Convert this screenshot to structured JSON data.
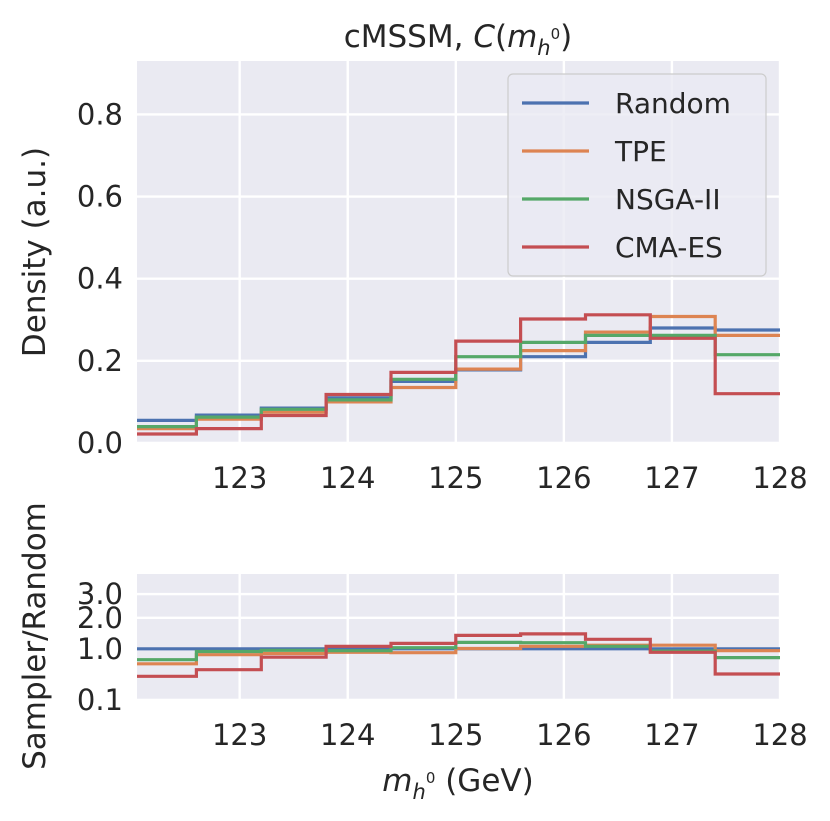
{
  "colors": {
    "background": "#ffffff",
    "axes_face": "#eaeaf2",
    "grid": "#ffffff",
    "text": "#262626",
    "legend_edge": "#cccccc"
  },
  "chart_data": [
    {
      "type": "line",
      "drawstyle": "step-histogram",
      "title": {
        "prefix": "cMSSM, ",
        "func": "C",
        "open": "(",
        "var": "m",
        "sub": "h",
        "sup": "0",
        "close": ")"
      },
      "xlabel": "",
      "ylabel": "Density (a.u.)",
      "xlim": [
        122.05,
        128.0
      ],
      "ylim": [
        0.0,
        0.93
      ],
      "xticks": [
        123,
        124,
        125,
        126,
        127,
        128
      ],
      "yticks": [
        0.0,
        0.2,
        0.4,
        0.6,
        0.8
      ],
      "ytick_labels": [
        "0.0",
        "0.2",
        "0.4",
        "0.6",
        "0.8"
      ],
      "grid": true,
      "legend_position": "top-right",
      "bin_edges": [
        122.05,
        122.6,
        123.2,
        123.8,
        124.4,
        125.0,
        125.6,
        126.2,
        126.8,
        127.4,
        128.0
      ],
      "series": [
        {
          "name": "Random",
          "color": "#4c72b0",
          "values": [
            0.055,
            0.068,
            0.085,
            0.11,
            0.15,
            0.178,
            0.21,
            0.245,
            0.28,
            0.275
          ]
        },
        {
          "name": "TPE",
          "color": "#dd8452",
          "values": [
            0.035,
            0.058,
            0.075,
            0.1,
            0.135,
            0.18,
            0.225,
            0.27,
            0.308,
            0.262
          ]
        },
        {
          "name": "NSGA-II",
          "color": "#55a868",
          "values": [
            0.04,
            0.063,
            0.082,
            0.105,
            0.155,
            0.21,
            0.245,
            0.262,
            0.262,
            0.215
          ]
        },
        {
          "name": "CMA-ES",
          "color": "#c44e52",
          "values": [
            0.022,
            0.035,
            0.067,
            0.118,
            0.172,
            0.248,
            0.302,
            0.312,
            0.255,
            0.12
          ]
        }
      ]
    },
    {
      "type": "line",
      "drawstyle": "step-histogram",
      "title": "",
      "xlabel": {
        "var": "m",
        "sub": "h",
        "sup": "0",
        "units": " (GeV)"
      },
      "ylabel": "Sampler/Random",
      "xlim": [
        122.05,
        128.0
      ],
      "ylim": [
        0.1,
        4.0
      ],
      "yscale": "sqrt",
      "xticks": [
        123,
        124,
        125,
        126,
        127,
        128
      ],
      "yticks": [
        0.1,
        1.0,
        2.0,
        3.0
      ],
      "ytick_labels": [
        "0.1",
        "1.0",
        "2.0",
        "3.0"
      ],
      "grid": true,
      "bin_edges": [
        122.05,
        122.6,
        123.2,
        123.8,
        124.4,
        125.0,
        125.6,
        126.2,
        126.8,
        127.4,
        128.0
      ],
      "series": [
        {
          "name": "Random",
          "color": "#4c72b0",
          "values": [
            1.0,
            1.0,
            1.0,
            1.0,
            1.0,
            1.0,
            1.0,
            1.0,
            1.0,
            1.0
          ]
        },
        {
          "name": "TPE",
          "color": "#dd8452",
          "values": [
            0.64,
            0.85,
            0.88,
            0.91,
            0.9,
            1.01,
            1.07,
            1.1,
            1.1,
            0.95
          ]
        },
        {
          "name": "NSGA-II",
          "color": "#55a868",
          "values": [
            0.73,
            0.93,
            0.96,
            0.95,
            1.03,
            1.18,
            1.17,
            1.07,
            0.94,
            0.78
          ]
        },
        {
          "name": "CMA-ES",
          "color": "#c44e52",
          "values": [
            0.4,
            0.52,
            0.79,
            1.07,
            1.15,
            1.39,
            1.44,
            1.27,
            0.91,
            0.44
          ]
        }
      ]
    }
  ]
}
